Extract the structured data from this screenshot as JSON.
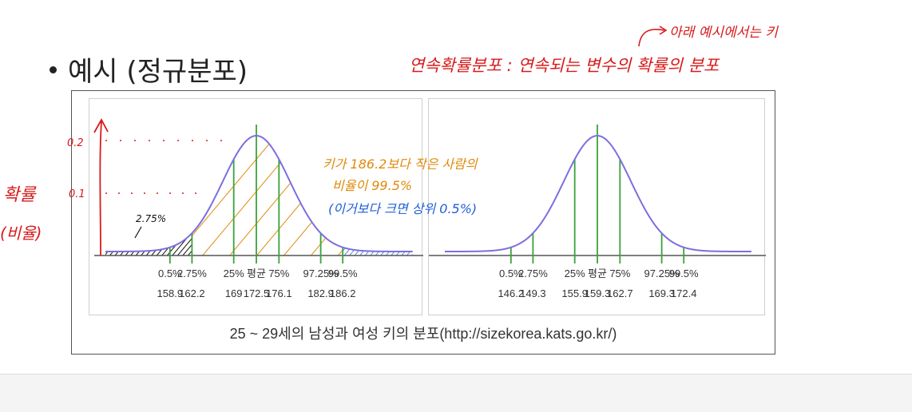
{
  "slide": {
    "bullet_text": "예시 (정규분포)",
    "caption": "25 ~ 29세의 남성과 여성 키의 분포(http://sizekorea.kats.go.kr/)"
  },
  "annotations": {
    "definition": "연속확률분포 : 연속되는 변수의 확률의 분포",
    "arrow_note": "아래 예시에서는 키",
    "y_axis_title": "확률",
    "y_axis_subtitle": "(비율)",
    "y_tick_02": "0.2",
    "y_tick_01": "0.1",
    "small_area_label": "2.75%",
    "orange_line1": "키가 186.2보다 작은 사람의",
    "orange_line2": "비율이 99.5%",
    "blue_note": "(이거보다 크면 상위 0.5%)"
  },
  "colors": {
    "curve": "#7b6fe0",
    "green_line": "#3aa33a",
    "orange_hatch": "#e08a0a",
    "black_hatch": "#111111",
    "blue_hatch": "#1f5fd8",
    "ink_red": "#d81b1b"
  },
  "chart_data": [
    {
      "type": "area",
      "description_scope": "left panel (male)",
      "mean": 172.5,
      "percentiles": [
        {
          "label": "0.5%",
          "value": "158.9",
          "p": 0.005
        },
        {
          "label": "2.75%",
          "value": "162.2",
          "p": 0.0275
        },
        {
          "label": "25%",
          "value": "169",
          "p": 0.25
        },
        {
          "label": "평균",
          "value": "172.5",
          "p": 0.5
        },
        {
          "label": "75%",
          "value": "176.1",
          "p": 0.75
        },
        {
          "label": "97.25%",
          "value": "182.9",
          "p": 0.9725
        },
        {
          "label": "99.5%",
          "value": "186.2",
          "p": 0.995
        }
      ]
    },
    {
      "type": "area",
      "description_scope": "right panel (female)",
      "mean": 159.3,
      "percentiles": [
        {
          "label": "0.5%",
          "value": "146.2",
          "p": 0.005
        },
        {
          "label": "2.75%",
          "value": "149.3",
          "p": 0.0275
        },
        {
          "label": "25%",
          "value": "155.9",
          "p": 0.25
        },
        {
          "label": "평균",
          "value": "159.3",
          "p": 0.5
        },
        {
          "label": "75%",
          "value": "162.7",
          "p": 0.75
        },
        {
          "label": "97.25%",
          "value": "169.3",
          "p": 0.9725
        },
        {
          "label": "99.5%",
          "value": "172.4",
          "p": 0.995
        }
      ]
    }
  ]
}
